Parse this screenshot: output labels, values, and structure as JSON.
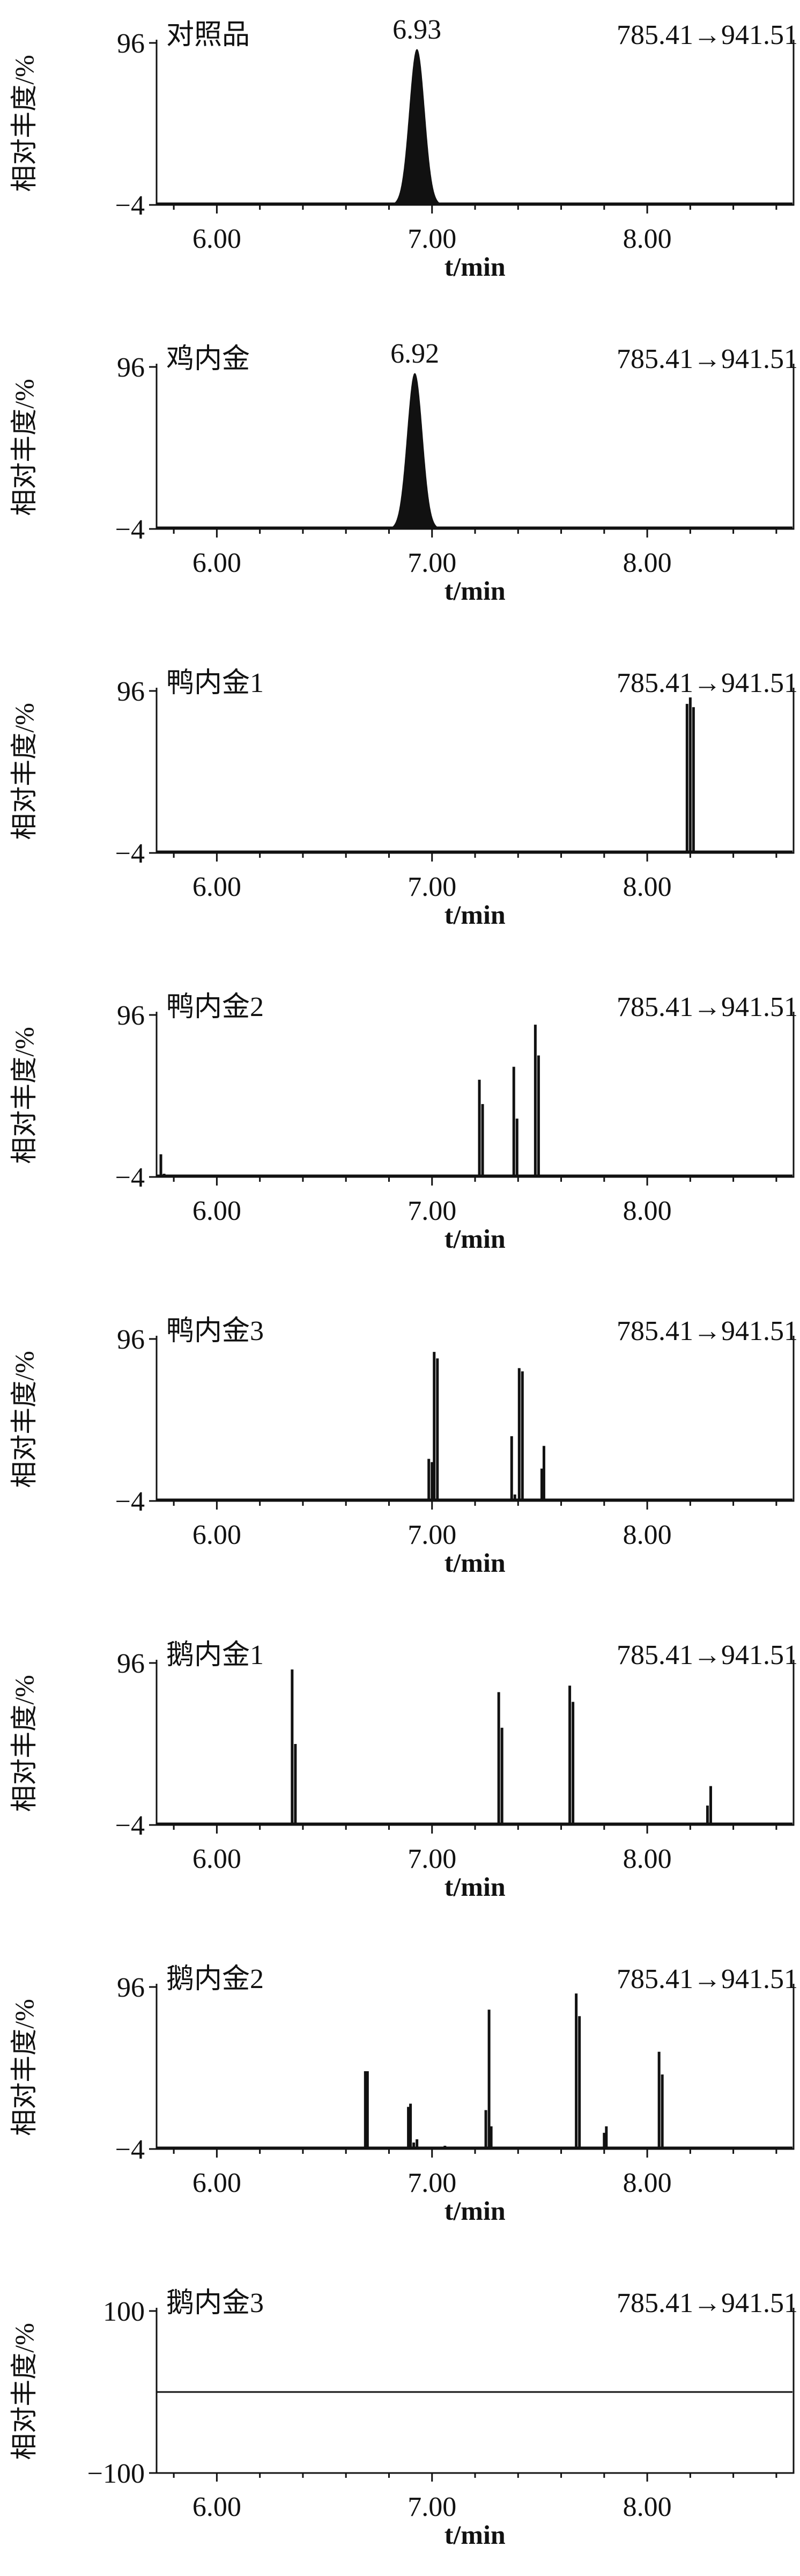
{
  "chart_data": [
    {
      "type": "line",
      "title": "对照品",
      "transition": "785.41→941.51",
      "peak_label": "6.93",
      "xlabel": "t/min",
      "ylabel": "相对丰度/%",
      "ytick_labels": [
        "96",
        "−4"
      ],
      "xtick_labels": [
        "6.00",
        "7.00",
        "8.00"
      ],
      "xlim": [
        5.72,
        8.68
      ],
      "ylim": [
        -4,
        96
      ],
      "peaks": [
        {
          "type": "gauss",
          "center": 6.93,
          "height": 96,
          "sigma": 0.035
        }
      ]
    },
    {
      "type": "line",
      "title": "鸡内金",
      "transition": "785.41→941.51",
      "peak_label": "6.92",
      "xlabel": "t/min",
      "ylabel": "相对丰度/%",
      "ytick_labels": [
        "96",
        "−4"
      ],
      "xtick_labels": [
        "6.00",
        "7.00",
        "8.00"
      ],
      "xlim": [
        5.72,
        8.68
      ],
      "ylim": [
        -4,
        96
      ],
      "peaks": [
        {
          "type": "gauss",
          "center": 6.92,
          "height": 96,
          "sigma": 0.035
        }
      ]
    },
    {
      "type": "line",
      "title": "鸭内金1",
      "transition": "785.41→941.51",
      "peak_label": "",
      "xlabel": "t/min",
      "ylabel": "相对丰度/%",
      "ytick_labels": [
        "96",
        "−4"
      ],
      "xtick_labels": [
        "6.00",
        "7.00",
        "8.00"
      ],
      "xlim": [
        5.72,
        8.68
      ],
      "ylim": [
        -4,
        96
      ],
      "peaks": [
        {
          "type": "spike",
          "x": 8.185,
          "height": 92
        },
        {
          "type": "spike",
          "x": 8.2,
          "height": 96
        },
        {
          "type": "spike",
          "x": 8.215,
          "height": 90
        }
      ]
    },
    {
      "type": "line",
      "title": "鸭内金2",
      "transition": "785.41→941.51",
      "peak_label": "",
      "xlabel": "t/min",
      "ylabel": "相对丰度/%",
      "ytick_labels": [
        "96",
        "−4"
      ],
      "xtick_labels": [
        "6.00",
        "7.00",
        "8.00"
      ],
      "xlim": [
        5.72,
        8.68
      ],
      "ylim": [
        -4,
        96
      ],
      "peaks": [
        {
          "type": "spike",
          "x": 5.74,
          "height": 14
        },
        {
          "type": "spike",
          "x": 5.755,
          "height": 2
        },
        {
          "type": "spike",
          "x": 7.22,
          "height": 60
        },
        {
          "type": "spike",
          "x": 7.235,
          "height": 45
        },
        {
          "type": "spike",
          "x": 7.38,
          "height": 68
        },
        {
          "type": "spike",
          "x": 7.395,
          "height": 36
        },
        {
          "type": "spike",
          "x": 7.48,
          "height": 94
        },
        {
          "type": "spike",
          "x": 7.495,
          "height": 75
        }
      ]
    },
    {
      "type": "line",
      "title": "鸭内金3",
      "transition": "785.41→941.51",
      "peak_label": "",
      "xlabel": "t/min",
      "ylabel": "相对丰度/%",
      "ytick_labels": [
        "96",
        "−4"
      ],
      "xtick_labels": [
        "6.00",
        "7.00",
        "8.00"
      ],
      "xlim": [
        5.72,
        8.68
      ],
      "ylim": [
        -4,
        96
      ],
      "peaks": [
        {
          "type": "spike",
          "x": 6.985,
          "height": 26
        },
        {
          "type": "spike",
          "x": 7.0,
          "height": 24
        },
        {
          "type": "spike",
          "x": 7.01,
          "height": 92
        },
        {
          "type": "spike",
          "x": 7.025,
          "height": 88
        },
        {
          "type": "spike",
          "x": 7.37,
          "height": 40
        },
        {
          "type": "spike",
          "x": 7.385,
          "height": 4
        },
        {
          "type": "spike",
          "x": 7.405,
          "height": 82
        },
        {
          "type": "spike",
          "x": 7.42,
          "height": 80
        },
        {
          "type": "spike",
          "x": 7.51,
          "height": 20
        },
        {
          "type": "spike",
          "x": 7.52,
          "height": 34
        }
      ]
    },
    {
      "type": "line",
      "title": "鹅内金1",
      "transition": "785.41→941.51",
      "peak_label": "",
      "xlabel": "t/min",
      "ylabel": "相对丰度/%",
      "ytick_labels": [
        "96",
        "−4"
      ],
      "xtick_labels": [
        "6.00",
        "7.00",
        "8.00"
      ],
      "xlim": [
        5.72,
        8.68
      ],
      "ylim": [
        -4,
        96
      ],
      "peaks": [
        {
          "type": "spike",
          "x": 6.35,
          "height": 96
        },
        {
          "type": "spike",
          "x": 6.365,
          "height": 50
        },
        {
          "type": "spike",
          "x": 7.31,
          "height": 82
        },
        {
          "type": "spike",
          "x": 7.325,
          "height": 60
        },
        {
          "type": "spike",
          "x": 7.64,
          "height": 86
        },
        {
          "type": "spike",
          "x": 7.655,
          "height": 76
        },
        {
          "type": "spike",
          "x": 8.28,
          "height": 12
        },
        {
          "type": "spike",
          "x": 8.295,
          "height": 24
        }
      ]
    },
    {
      "type": "line",
      "title": "鹅内金2",
      "transition": "785.41→941.51",
      "peak_label": "",
      "xlabel": "t/min",
      "ylabel": "相对丰度/%",
      "ytick_labels": [
        "96",
        "−4"
      ],
      "xtick_labels": [
        "6.00",
        "7.00",
        "8.00"
      ],
      "xlim": [
        5.72,
        8.68
      ],
      "ylim": [
        -4,
        96
      ],
      "peaks": [
        {
          "type": "spike",
          "x": 6.69,
          "height": 48
        },
        {
          "type": "spike",
          "x": 6.7,
          "height": 48
        },
        {
          "type": "spike",
          "x": 6.89,
          "height": 26
        },
        {
          "type": "spike",
          "x": 6.9,
          "height": 28
        },
        {
          "type": "spike",
          "x": 6.915,
          "height": 4
        },
        {
          "type": "spike",
          "x": 6.93,
          "height": 6
        },
        {
          "type": "spike",
          "x": 7.06,
          "height": 2
        },
        {
          "type": "spike",
          "x": 7.07,
          "height": 1
        },
        {
          "type": "spike",
          "x": 7.25,
          "height": 24
        },
        {
          "type": "spike",
          "x": 7.265,
          "height": 86
        },
        {
          "type": "spike",
          "x": 7.275,
          "height": 14
        },
        {
          "type": "spike",
          "x": 7.67,
          "height": 96
        },
        {
          "type": "spike",
          "x": 7.685,
          "height": 82
        },
        {
          "type": "spike",
          "x": 7.8,
          "height": 10
        },
        {
          "type": "spike",
          "x": 7.81,
          "height": 14
        },
        {
          "type": "spike",
          "x": 8.055,
          "height": 60
        },
        {
          "type": "spike",
          "x": 8.07,
          "height": 46
        }
      ]
    },
    {
      "type": "line",
      "title": "鹅内金3",
      "transition": "785.41→941.51",
      "peak_label": "",
      "xlabel": "t/min",
      "ylabel": "相对丰度/%",
      "ytick_labels": [
        "100",
        "−100"
      ],
      "xtick_labels": [
        "6.00",
        "7.00",
        "8.00"
      ],
      "xlim": [
        5.72,
        8.68
      ],
      "ylim": [
        -100,
        100
      ],
      "flat_value": 0,
      "peaks": []
    }
  ]
}
